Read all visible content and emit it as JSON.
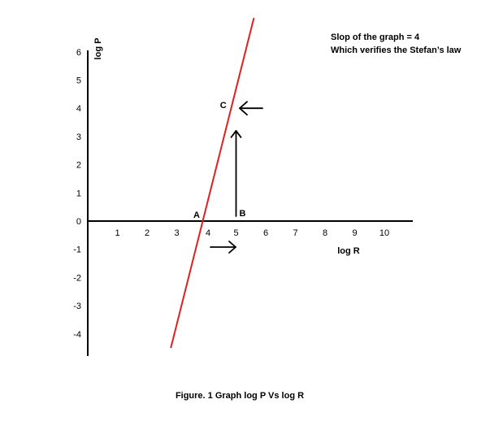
{
  "notes": [
    "Slop of the graph = 4",
    "Which verifies the Stefan’s law"
  ],
  "caption": "Figure. 1 Graph log P Vs log R",
  "colors": {
    "line": "#e02020",
    "axis": "#000000",
    "text": "#000000"
  },
  "chart_data": {
    "type": "line",
    "xlabel": "log R",
    "ylabel": "log P",
    "x_ticks": [
      1,
      2,
      3,
      4,
      5,
      6,
      7,
      8,
      9,
      10
    ],
    "y_ticks": [
      6,
      5,
      4,
      3,
      2,
      1,
      0,
      -1,
      -2,
      -3,
      -4
    ],
    "xlim": [
      0,
      11
    ],
    "ylim": [
      -4.5,
      7
    ],
    "grid": false,
    "series": [
      {
        "x": [
          2.8,
          5.6
        ],
        "y": [
          -4.5,
          7.2
        ]
      }
    ],
    "points": [
      {
        "label": "A",
        "x": 4.0,
        "y": 0
      },
      {
        "label": "B",
        "x": 5.0,
        "y": 0
      },
      {
        "label": "C",
        "x": 4.95,
        "y": 4.0
      }
    ]
  }
}
